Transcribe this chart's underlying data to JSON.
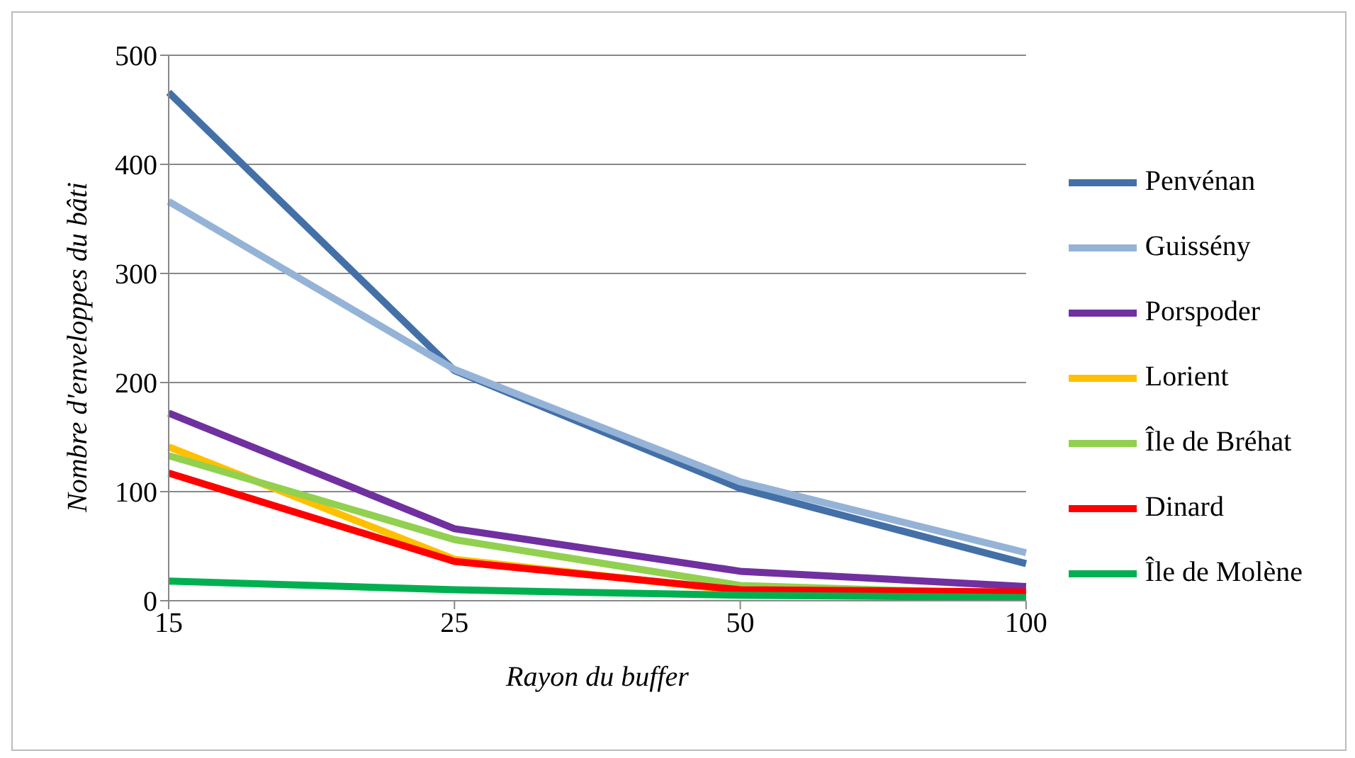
{
  "chart_data": {
    "type": "line",
    "xlabel": "Rayon du buffer",
    "ylabel": "Nombre d'enveloppes du bâti",
    "categories": [
      "15",
      "25",
      "50",
      "100"
    ],
    "ylim": [
      0,
      500
    ],
    "yticks": [
      0,
      100,
      200,
      300,
      400,
      500
    ],
    "grid": "y",
    "legend": "right",
    "marker": "none",
    "line_style": "solid",
    "series": [
      {
        "name": "Penvénan",
        "color": "#4470a8",
        "values": [
          466,
          211,
          103,
          34
        ]
      },
      {
        "name": "Guissény",
        "color": "#95b3d7",
        "values": [
          366,
          212,
          109,
          44
        ]
      },
      {
        "name": "Porspoder",
        "color": "#7030a0",
        "values": [
          172,
          66,
          27,
          13
        ]
      },
      {
        "name": "Lorient",
        "color": "#ffc000",
        "values": [
          141,
          38,
          9,
          5
        ]
      },
      {
        "name": "Île de Bréhat",
        "color": "#92d050",
        "values": [
          133,
          56,
          14,
          6
        ]
      },
      {
        "name": "Dinard",
        "color": "#ff0000",
        "values": [
          117,
          36,
          10,
          8
        ]
      },
      {
        "name": "Île de Molène",
        "color": "#00b050",
        "values": [
          18,
          10,
          5,
          3
        ]
      }
    ]
  }
}
